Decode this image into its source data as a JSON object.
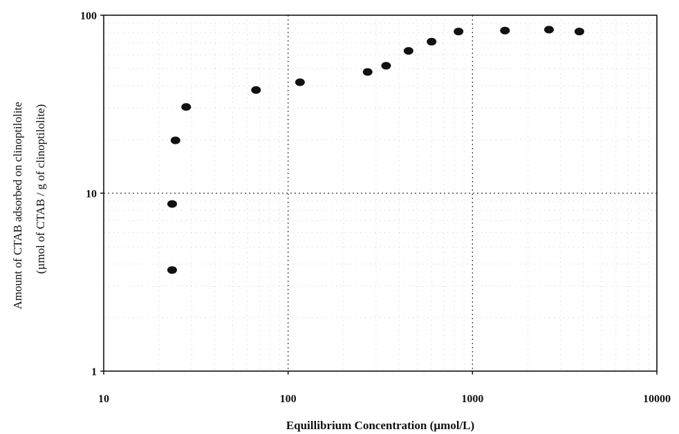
{
  "chart_data": {
    "type": "scatter",
    "title": "",
    "xlabel": "Equillibrium Concentration (µmol/L)",
    "ylabel_line1": "Amount of CTAB adsorbed on clinoptilolite",
    "ylabel_line2": "(µmol of CTAB / g of clinoptilolite)",
    "x_scale": "log",
    "y_scale": "log",
    "xlim": [
      10,
      10000
    ],
    "ylim": [
      1,
      100
    ],
    "x_ticks": [
      "10",
      "100",
      "1000",
      "10000"
    ],
    "y_ticks": [
      "1",
      "10",
      "100"
    ],
    "grid": true,
    "legend": false,
    "marker_color": "#111111",
    "points": [
      {
        "x": 23.5,
        "y": 3.7
      },
      {
        "x": 23.5,
        "y": 8.7
      },
      {
        "x": 24.5,
        "y": 19.8
      },
      {
        "x": 28,
        "y": 30.5
      },
      {
        "x": 67,
        "y": 38
      },
      {
        "x": 116,
        "y": 42
      },
      {
        "x": 270,
        "y": 48
      },
      {
        "x": 340,
        "y": 52
      },
      {
        "x": 450,
        "y": 63
      },
      {
        "x": 600,
        "y": 71
      },
      {
        "x": 840,
        "y": 81
      },
      {
        "x": 1500,
        "y": 82
      },
      {
        "x": 2600,
        "y": 83
      },
      {
        "x": 3800,
        "y": 81
      }
    ]
  }
}
